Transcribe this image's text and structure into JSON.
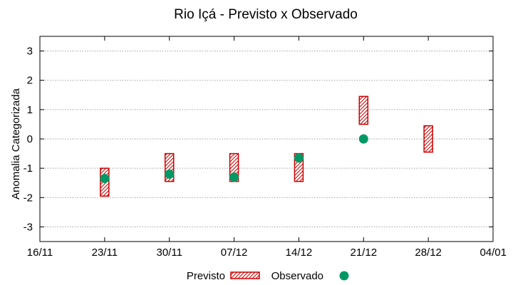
{
  "chart_data": {
    "type": "range-and-scatter",
    "title": "Rio Içá - Previsto x Observado",
    "ylabel": "Anomalia Categorizada",
    "xlabel": "",
    "x_ticks": [
      "16/11",
      "23/11",
      "30/11",
      "07/12",
      "14/12",
      "21/12",
      "28/12",
      "04/01"
    ],
    "y_ticks": [
      3,
      2,
      1,
      0,
      -1,
      -2,
      -3
    ],
    "ylim": [
      -3.5,
      3.5
    ],
    "grid": true,
    "legend_position": "bottom",
    "colors": {
      "previsto": "#cc0000",
      "observado": "#009966"
    },
    "series": [
      {
        "name": "Previsto",
        "kind": "range",
        "points": [
          {
            "x": "23/11",
            "low": -1.95,
            "high": -1.0
          },
          {
            "x": "30/11",
            "low": -1.45,
            "high": -0.5
          },
          {
            "x": "07/12",
            "low": -1.45,
            "high": -0.5
          },
          {
            "x": "14/12",
            "low": -1.45,
            "high": -0.5
          },
          {
            "x": "21/12",
            "low": 0.5,
            "high": 1.45
          },
          {
            "x": "28/12",
            "low": -0.45,
            "high": 0.45
          }
        ]
      },
      {
        "name": "Observado",
        "kind": "points",
        "points": [
          {
            "x": "23/11",
            "y": -1.35
          },
          {
            "x": "30/11",
            "y": -1.2
          },
          {
            "x": "07/12",
            "y": -1.3
          },
          {
            "x": "14/12",
            "y": -0.65
          },
          {
            "x": "21/12",
            "y": 0.0
          }
        ]
      }
    ]
  }
}
